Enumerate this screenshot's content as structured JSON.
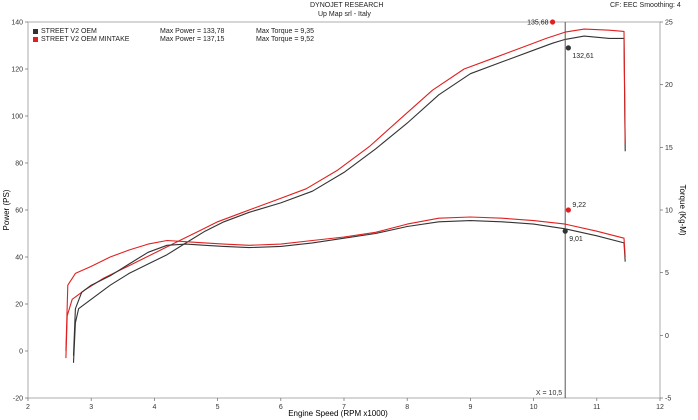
{
  "header": {
    "title": "DYNOJET RESEARCH",
    "subtitle": "Up Map srl - Italy",
    "settings": "CF: EEC  Smoothing: 4"
  },
  "legend": [
    {
      "name": "STREET V2 OEM",
      "max_power": "Max Power = 133,78",
      "max_torque": "Max Torque = 9,35",
      "color": "#333333"
    },
    {
      "name": "STREET V2 OEM MINTAKE",
      "max_power": "Max Power = 137,15",
      "max_torque": "Max Torque = 9,52",
      "color": "#e02020"
    }
  ],
  "colors": {
    "oem": "#333333",
    "mintake": "#e02020",
    "cursor": "#555555",
    "grid": "#dddddd"
  },
  "chart_data": {
    "type": "line",
    "xlabel": "Engine Speed (RPM x1000)",
    "ylabel_left": "Power (PS)",
    "ylabel_right": "Torque (Kg-M)",
    "xlim": [
      2,
      12
    ],
    "ylim_left": [
      -20,
      140
    ],
    "ylim_right": [
      -5,
      25
    ],
    "x_ticks": [
      2,
      3,
      4,
      5,
      6,
      7,
      8,
      9,
      10,
      11,
      12
    ],
    "y_ticks_left": [
      -20,
      0,
      20,
      40,
      60,
      80,
      100,
      120,
      140
    ],
    "y_ticks_right": [
      -5,
      0,
      5,
      10,
      15,
      20,
      25
    ],
    "cursor": {
      "x": 10.5,
      "label": "X = 10,5"
    },
    "annotations": [
      {
        "text": "135,68",
        "series": "STREET V2 OEM MINTAKE",
        "kind": "power",
        "x": 10.3,
        "y": 140,
        "dot": "#e02020"
      },
      {
        "text": "132,61",
        "series": "STREET V2 OEM",
        "kind": "power",
        "x": 10.55,
        "y": 129,
        "dot": "#333333"
      },
      {
        "text": "9,22",
        "series": "STREET V2 OEM MINTAKE",
        "kind": "torque",
        "x": 10.55,
        "y": 60,
        "dot": "#e02020"
      },
      {
        "text": "9,01",
        "series": "STREET V2 OEM",
        "kind": "torque",
        "x": 10.5,
        "y": 51,
        "dot": "#333333"
      }
    ],
    "series": [
      {
        "name": "STREET V2 OEM",
        "kind": "power",
        "color": "#333333",
        "x": [
          2.72,
          2.75,
          2.8,
          3.0,
          3.3,
          3.6,
          3.9,
          4.2,
          4.5,
          4.8,
          5.1,
          5.5,
          6.0,
          6.5,
          7.0,
          7.5,
          8.0,
          8.5,
          9.0,
          9.5,
          10.0,
          10.3,
          10.5,
          10.8,
          11.2,
          11.43,
          11.45
        ],
        "y": [
          -5,
          12,
          18,
          22,
          28,
          33,
          37,
          41,
          46,
          51,
          55,
          59,
          63,
          68,
          76,
          86,
          97,
          109,
          118,
          123,
          128,
          131,
          132.6,
          134,
          133,
          133,
          85
        ]
      },
      {
        "name": "STREET V2 OEM MINTAKE",
        "kind": "power",
        "color": "#e02020",
        "x": [
          2.6,
          2.62,
          2.7,
          2.9,
          3.2,
          3.5,
          3.8,
          4.1,
          4.4,
          4.7,
          5.0,
          5.4,
          5.9,
          6.4,
          6.9,
          7.4,
          7.9,
          8.4,
          8.9,
          9.4,
          9.9,
          10.2,
          10.5,
          10.8,
          11.2,
          11.43,
          11.45
        ],
        "y": [
          -3,
          15,
          22,
          26,
          31,
          35,
          39,
          43,
          47,
          51,
          55,
          59,
          64,
          69,
          77,
          87,
          99,
          111,
          120,
          125,
          130,
          133,
          135.7,
          137,
          136.5,
          136,
          88
        ]
      },
      {
        "name": "STREET V2 OEM",
        "kind": "torque",
        "color": "#333333",
        "x": [
          2.72,
          2.75,
          2.85,
          3.0,
          3.3,
          3.6,
          3.9,
          4.2,
          4.5,
          4.8,
          5.1,
          5.5,
          6.0,
          6.5,
          7.0,
          7.5,
          8.0,
          8.5,
          9.0,
          9.5,
          10.0,
          10.5,
          11.0,
          11.43,
          11.45
        ],
        "y": [
          -2,
          18,
          25,
          28,
          32,
          37,
          42,
          45,
          45.5,
          45,
          44.5,
          44,
          44.5,
          46,
          48,
          50,
          53,
          55,
          55.5,
          55,
          54,
          52,
          49,
          46,
          38
        ]
      },
      {
        "name": "STREET V2 OEM MINTAKE",
        "kind": "torque",
        "color": "#e02020",
        "x": [
          2.6,
          2.63,
          2.75,
          3.0,
          3.3,
          3.6,
          3.9,
          4.2,
          4.5,
          4.8,
          5.1,
          5.5,
          6.0,
          6.5,
          7.0,
          7.5,
          8.0,
          8.5,
          9.0,
          9.5,
          10.0,
          10.5,
          11.0,
          11.43,
          11.45
        ],
        "y": [
          0,
          28,
          33,
          36,
          40,
          43,
          45.5,
          47,
          46.5,
          46,
          45.5,
          45,
          45.5,
          47,
          48.5,
          50.5,
          54,
          56.5,
          57,
          56.5,
          55.5,
          54,
          51,
          48,
          40
        ]
      }
    ]
  }
}
